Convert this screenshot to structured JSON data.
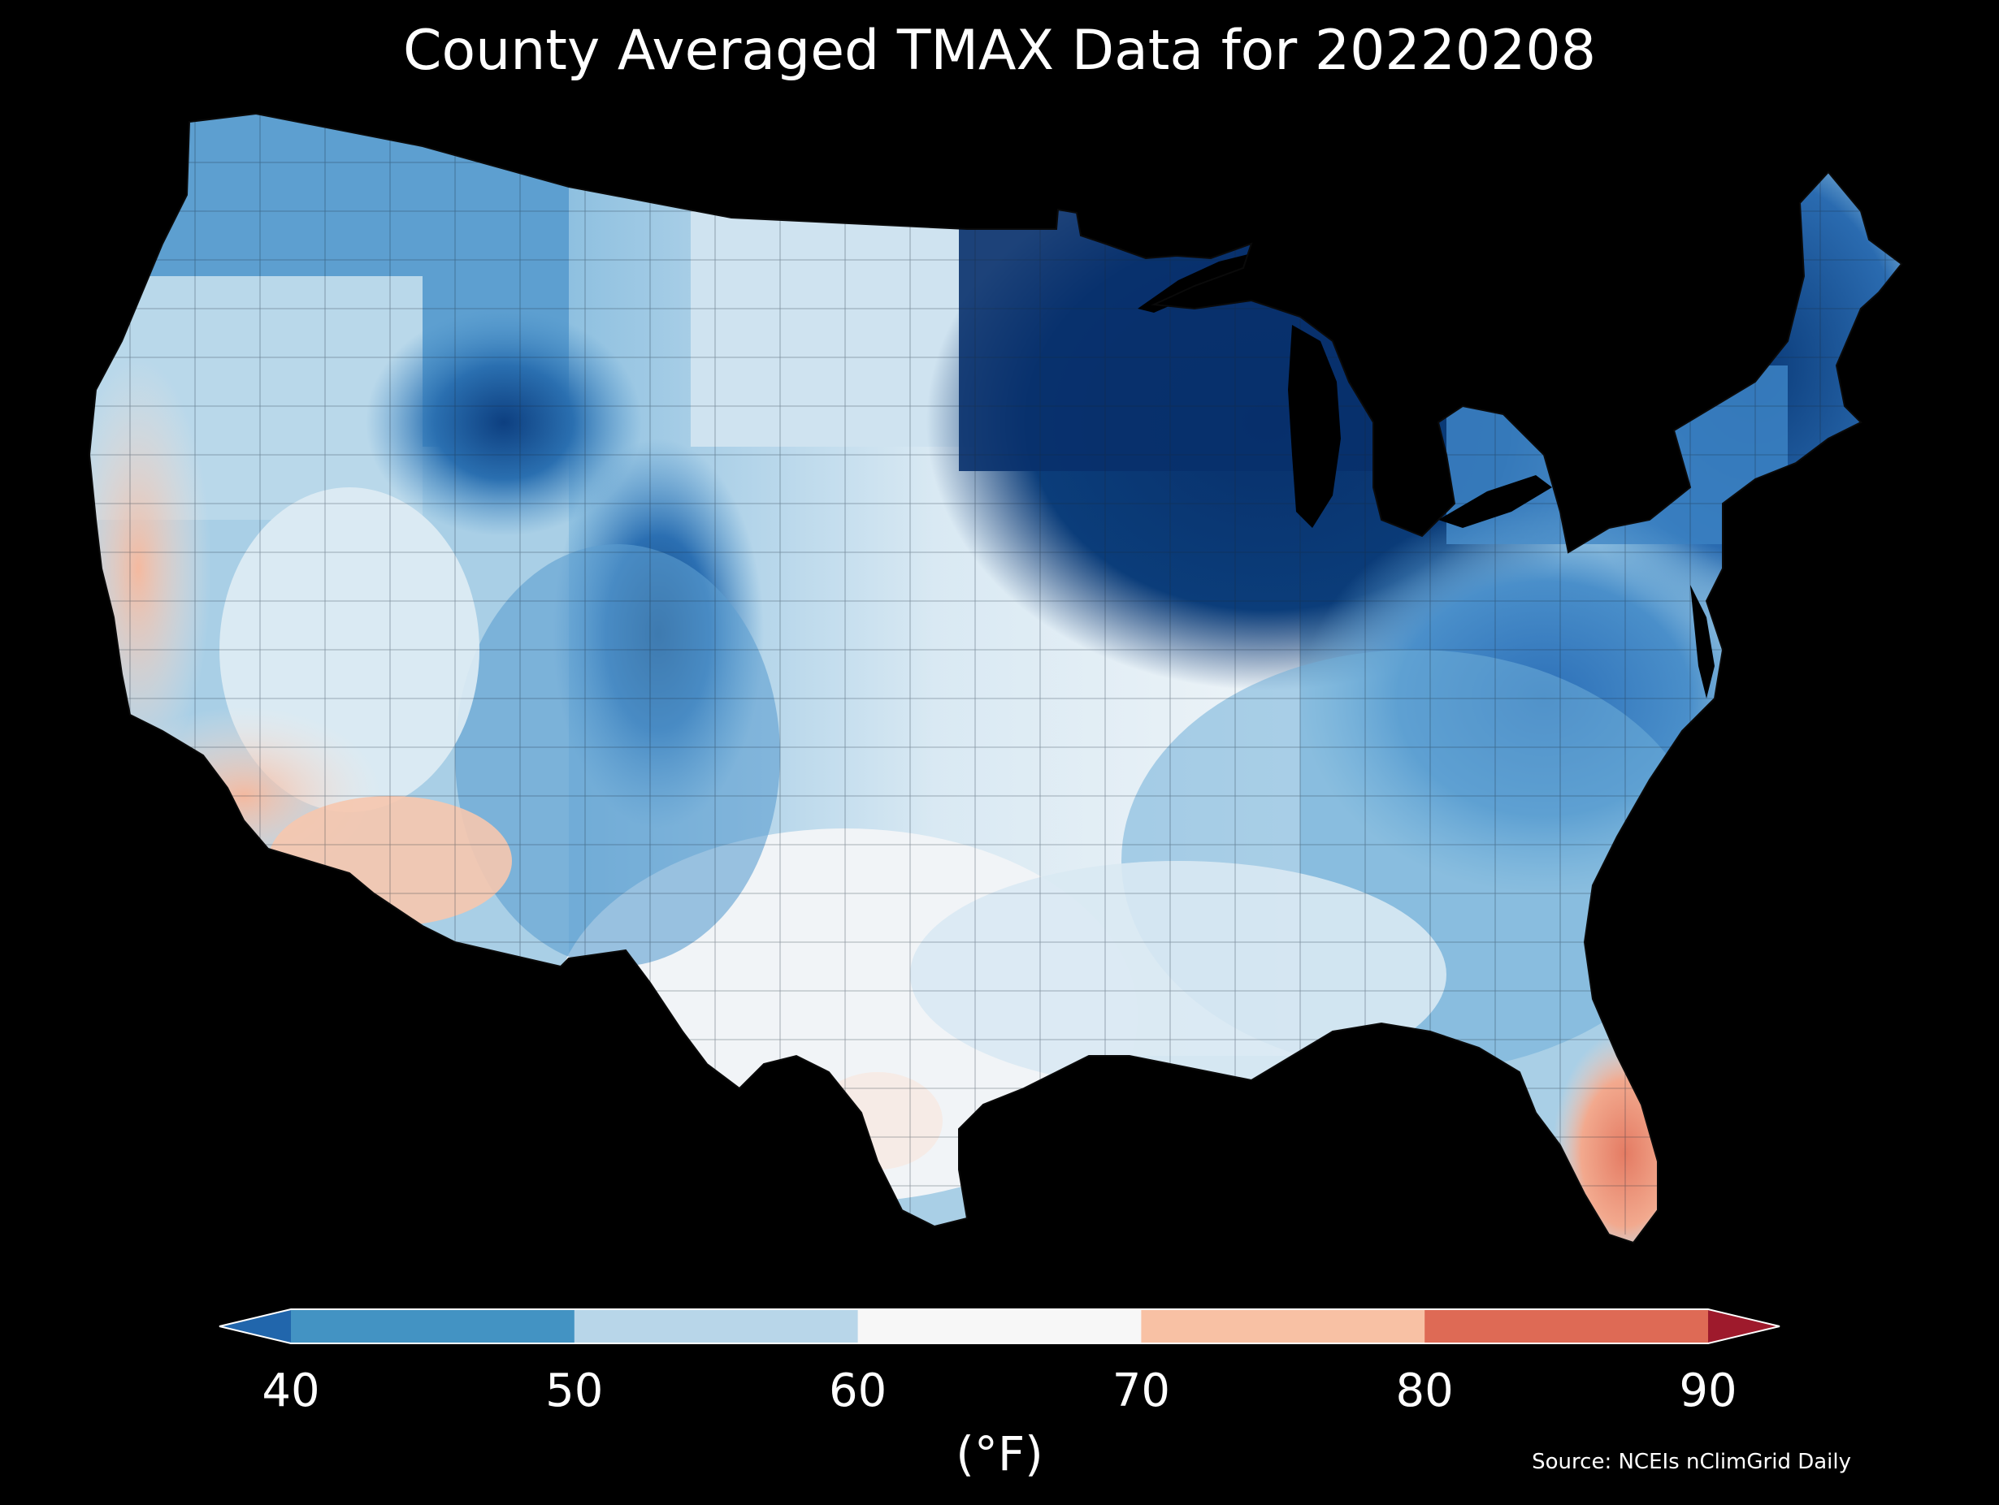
{
  "title": "County Averaged TMAX Data for 20220208",
  "source": "Source: NCEIs nClimGrid Daily",
  "colorbar": {
    "label": "(°F)",
    "min": 40,
    "max": 90,
    "extend": "both",
    "ticks": [
      "40",
      "50",
      "60",
      "70",
      "80",
      "90"
    ],
    "bins": [
      {
        "range": "<40",
        "color": "#2166ac"
      },
      {
        "range": "40-50",
        "color": "#4393c3"
      },
      {
        "range": "50-60",
        "color": "#b8d6e9"
      },
      {
        "range": "60-70",
        "color": "#f7f7f7"
      },
      {
        "range": "70-80",
        "color": "#f8c1a4"
      },
      {
        "range": "80-90",
        "color": "#de6a55"
      },
      {
        "range": ">90",
        "color": "#9e1a2c"
      }
    ]
  },
  "map": {
    "region": "Contiguous United States",
    "background": "#000000",
    "boundaries": "counties"
  }
}
